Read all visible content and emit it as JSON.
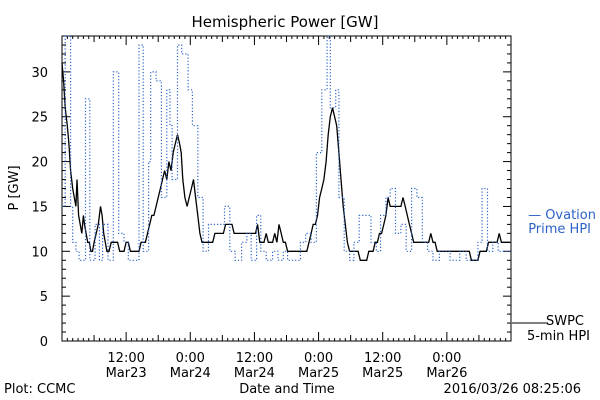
{
  "chart_data": {
    "type": "line",
    "title": "Hemispheric Power [GW]",
    "ylabel": "P [GW]",
    "xlabel": "Date and Time",
    "ylim": [
      0,
      34
    ],
    "y_ticks": [
      0,
      5,
      10,
      15,
      20,
      25,
      30
    ],
    "x_range_hours": [
      0,
      84
    ],
    "x_ticks": [
      {
        "hour": 12,
        "line1": "12:00",
        "line2": "Mar23"
      },
      {
        "hour": 24,
        "line1": "0:00",
        "line2": "Mar24"
      },
      {
        "hour": 36,
        "line1": "12:00",
        "line2": "Mar24"
      },
      {
        "hour": 48,
        "line1": "0:00",
        "line2": "Mar25"
      },
      {
        "hour": 60,
        "line1": "12:00",
        "line2": "Mar25"
      },
      {
        "hour": 72,
        "line1": "0:00",
        "line2": "Mar26"
      }
    ],
    "footer": {
      "left": "Plot: CCMC",
      "right": "2016/03/26 08:25:06"
    },
    "legend": [
      {
        "key": "ovation",
        "line1": "— Ovation",
        "line2": "Prime HPI",
        "color": "#2d63c8",
        "position": "right-middle"
      },
      {
        "key": "swpc",
        "line1": "SWPC",
        "line2": "5-min HPI",
        "color": "#000000",
        "position": "right-bottom"
      }
    ],
    "series": [
      {
        "key": "swpc",
        "color": "#000000",
        "style": "solid",
        "step": false,
        "points": [
          [
            0,
            31
          ],
          [
            0.3,
            29
          ],
          [
            0.6,
            26
          ],
          [
            1,
            24
          ],
          [
            1.3,
            22
          ],
          [
            1.6,
            19
          ],
          [
            2,
            17
          ],
          [
            2.3,
            16
          ],
          [
            2.6,
            15
          ],
          [
            2.8,
            18
          ],
          [
            3.1,
            14
          ],
          [
            3.4,
            13
          ],
          [
            3.7,
            12
          ],
          [
            4,
            14
          ],
          [
            4.2,
            13
          ],
          [
            4.5,
            12
          ],
          [
            4.8,
            11
          ],
          [
            5.1,
            11
          ],
          [
            5.4,
            10
          ],
          [
            5.7,
            10
          ],
          [
            6,
            11
          ],
          [
            6.4,
            12
          ],
          [
            6.8,
            13
          ],
          [
            7.2,
            15
          ],
          [
            7.5,
            14
          ],
          [
            7.8,
            12
          ],
          [
            8.1,
            11
          ],
          [
            8.4,
            10
          ],
          [
            8.8,
            10
          ],
          [
            9.2,
            11
          ],
          [
            9.6,
            11
          ],
          [
            10,
            11
          ],
          [
            10.4,
            11
          ],
          [
            10.8,
            10
          ],
          [
            11.2,
            10
          ],
          [
            11.6,
            10
          ],
          [
            12,
            11
          ],
          [
            12.4,
            11
          ],
          [
            12.8,
            10
          ],
          [
            13.2,
            10
          ],
          [
            13.6,
            10
          ],
          [
            14,
            10
          ],
          [
            14.4,
            10
          ],
          [
            14.8,
            11
          ],
          [
            15.2,
            11
          ],
          [
            15.6,
            11
          ],
          [
            16,
            12
          ],
          [
            16.4,
            13
          ],
          [
            16.8,
            14
          ],
          [
            17.2,
            14
          ],
          [
            17.6,
            15
          ],
          [
            18,
            16
          ],
          [
            18.4,
            17
          ],
          [
            18.8,
            18
          ],
          [
            19.2,
            19
          ],
          [
            19.6,
            18
          ],
          [
            20,
            20
          ],
          [
            20.4,
            19
          ],
          [
            20.8,
            21
          ],
          [
            21.2,
            22
          ],
          [
            21.6,
            23
          ],
          [
            22,
            22
          ],
          [
            22.3,
            21
          ],
          [
            22.6,
            18
          ],
          [
            23,
            16
          ],
          [
            23.4,
            15
          ],
          [
            23.8,
            16
          ],
          [
            24.2,
            17
          ],
          [
            24.6,
            18
          ],
          [
            25,
            16
          ],
          [
            25.4,
            14
          ],
          [
            25.8,
            12
          ],
          [
            26.2,
            11
          ],
          [
            26.6,
            11
          ],
          [
            27,
            11
          ],
          [
            27.4,
            11
          ],
          [
            27.8,
            11
          ],
          [
            28.2,
            11
          ],
          [
            28.6,
            12
          ],
          [
            29,
            12
          ],
          [
            29.4,
            12
          ],
          [
            29.8,
            12
          ],
          [
            30.2,
            12
          ],
          [
            30.6,
            13
          ],
          [
            31,
            13
          ],
          [
            31.4,
            13
          ],
          [
            31.8,
            13
          ],
          [
            32.2,
            12
          ],
          [
            32.6,
            12
          ],
          [
            33,
            12
          ],
          [
            33.4,
            12
          ],
          [
            33.8,
            12
          ],
          [
            34.2,
            12
          ],
          [
            34.6,
            12
          ],
          [
            35,
            12
          ],
          [
            35.4,
            12
          ],
          [
            35.8,
            12
          ],
          [
            36.2,
            12
          ],
          [
            36.6,
            13
          ],
          [
            37,
            11
          ],
          [
            37.4,
            11
          ],
          [
            37.8,
            11
          ],
          [
            38.2,
            12
          ],
          [
            38.6,
            11
          ],
          [
            39,
            11
          ],
          [
            39.4,
            11
          ],
          [
            39.8,
            12
          ],
          [
            40.2,
            11
          ],
          [
            40.6,
            13
          ],
          [
            41,
            12
          ],
          [
            41.4,
            11
          ],
          [
            41.8,
            11
          ],
          [
            42.2,
            10
          ],
          [
            42.6,
            10
          ],
          [
            43,
            10
          ],
          [
            43.4,
            10
          ],
          [
            43.8,
            10
          ],
          [
            44.2,
            10
          ],
          [
            44.6,
            10
          ],
          [
            45,
            10
          ],
          [
            45.4,
            10
          ],
          [
            45.8,
            10
          ],
          [
            46.2,
            11
          ],
          [
            46.6,
            12
          ],
          [
            47,
            13
          ],
          [
            47.4,
            13
          ],
          [
            47.8,
            14
          ],
          [
            48.2,
            16
          ],
          [
            48.6,
            17
          ],
          [
            49,
            18
          ],
          [
            49.4,
            20
          ],
          [
            49.8,
            23
          ],
          [
            50.2,
            25
          ],
          [
            50.6,
            26
          ],
          [
            51,
            25
          ],
          [
            51.4,
            24
          ],
          [
            51.8,
            21
          ],
          [
            52.2,
            18
          ],
          [
            52.6,
            15
          ],
          [
            53,
            13
          ],
          [
            53.4,
            11
          ],
          [
            53.8,
            10
          ],
          [
            54.2,
            10
          ],
          [
            54.6,
            10
          ],
          [
            55,
            10
          ],
          [
            55.4,
            10
          ],
          [
            55.8,
            9
          ],
          [
            56.2,
            9
          ],
          [
            56.6,
            9
          ],
          [
            57,
            9
          ],
          [
            57.4,
            10
          ],
          [
            57.8,
            10
          ],
          [
            58.2,
            10
          ],
          [
            58.6,
            11
          ],
          [
            59,
            11
          ],
          [
            59.4,
            12
          ],
          [
            59.8,
            12
          ],
          [
            60.2,
            13
          ],
          [
            60.6,
            14
          ],
          [
            61,
            16
          ],
          [
            61.4,
            15
          ],
          [
            61.8,
            15
          ],
          [
            62.2,
            15
          ],
          [
            62.6,
            15
          ],
          [
            63,
            15
          ],
          [
            63.4,
            15
          ],
          [
            63.8,
            16
          ],
          [
            64.2,
            15
          ],
          [
            64.6,
            14
          ],
          [
            65,
            13
          ],
          [
            65.4,
            12
          ],
          [
            65.8,
            11
          ],
          [
            66.2,
            11
          ],
          [
            66.6,
            11
          ],
          [
            67,
            11
          ],
          [
            67.4,
            11
          ],
          [
            67.8,
            11
          ],
          [
            68.2,
            11
          ],
          [
            68.6,
            11
          ],
          [
            69,
            12
          ],
          [
            69.4,
            11
          ],
          [
            69.8,
            11
          ],
          [
            70.2,
            10
          ],
          [
            70.6,
            10
          ],
          [
            71,
            10
          ],
          [
            71.4,
            10
          ],
          [
            71.8,
            10
          ],
          [
            72.2,
            10
          ],
          [
            72.6,
            10
          ],
          [
            73,
            10
          ],
          [
            73.4,
            10
          ],
          [
            73.8,
            10
          ],
          [
            74.2,
            10
          ],
          [
            74.6,
            10
          ],
          [
            75,
            10
          ],
          [
            75.4,
            10
          ],
          [
            75.8,
            10
          ],
          [
            76.2,
            10
          ],
          [
            76.6,
            9
          ],
          [
            77,
            9
          ],
          [
            77.4,
            9
          ],
          [
            77.8,
            9
          ],
          [
            78.2,
            10
          ],
          [
            78.6,
            10
          ],
          [
            79,
            10
          ],
          [
            79.4,
            10
          ],
          [
            79.8,
            11
          ],
          [
            80.2,
            11
          ],
          [
            80.6,
            11
          ],
          [
            81,
            11
          ],
          [
            81.4,
            11
          ],
          [
            81.8,
            12
          ],
          [
            82.2,
            11
          ],
          [
            82.6,
            11
          ],
          [
            83,
            11
          ],
          [
            83.4,
            11
          ],
          [
            83.8,
            11
          ]
        ]
      },
      {
        "key": "ovation",
        "color": "#2d63c8",
        "style": "dotted",
        "step": true,
        "points": [
          [
            0,
            15
          ],
          [
            0.6,
            34
          ],
          [
            1.6,
            15
          ],
          [
            2,
            11
          ],
          [
            2.6,
            10
          ],
          [
            3.2,
            9
          ],
          [
            4.4,
            27
          ],
          [
            5.2,
            9
          ],
          [
            6.2,
            13
          ],
          [
            7,
            9
          ],
          [
            7.6,
            13
          ],
          [
            8.6,
            9
          ],
          [
            9.6,
            30
          ],
          [
            10.6,
            12
          ],
          [
            11.6,
            11
          ],
          [
            12.4,
            9
          ],
          [
            13.4,
            9
          ],
          [
            14.4,
            33
          ],
          [
            15.2,
            10
          ],
          [
            16.2,
            20
          ],
          [
            16.6,
            30
          ],
          [
            17.6,
            29
          ],
          [
            18.6,
            16
          ],
          [
            19.6,
            28
          ],
          [
            20.2,
            24
          ],
          [
            20.6,
            18
          ],
          [
            21.6,
            33
          ],
          [
            22.4,
            32
          ],
          [
            23.6,
            28
          ],
          [
            24.4,
            24
          ],
          [
            25.4,
            16
          ],
          [
            26.4,
            10
          ],
          [
            27.4,
            13
          ],
          [
            28.6,
            13
          ],
          [
            29.6,
            13
          ],
          [
            30.4,
            15
          ],
          [
            31.4,
            10
          ],
          [
            32.4,
            9
          ],
          [
            33.6,
            11
          ],
          [
            34.6,
            12
          ],
          [
            35.4,
            9
          ],
          [
            36.4,
            14
          ],
          [
            37.2,
            10
          ],
          [
            38.2,
            9
          ],
          [
            39.4,
            10
          ],
          [
            40.4,
            9
          ],
          [
            41.4,
            10
          ],
          [
            42.2,
            9
          ],
          [
            43.6,
            9
          ],
          [
            44.6,
            11
          ],
          [
            45.6,
            12
          ],
          [
            46.6,
            11
          ],
          [
            47.6,
            21
          ],
          [
            48.6,
            28
          ],
          [
            49.6,
            34
          ],
          [
            50.2,
            26
          ],
          [
            51.2,
            28
          ],
          [
            51.8,
            16
          ],
          [
            52.8,
            10
          ],
          [
            53.8,
            9
          ],
          [
            54.6,
            11
          ],
          [
            55.6,
            14
          ],
          [
            56.6,
            14
          ],
          [
            57.8,
            11
          ],
          [
            58.8,
            10
          ],
          [
            59.6,
            14
          ],
          [
            60.6,
            16
          ],
          [
            61.4,
            17
          ],
          [
            62.4,
            12
          ],
          [
            63.4,
            13
          ],
          [
            64.4,
            10
          ],
          [
            65.4,
            17
          ],
          [
            66.4,
            16
          ],
          [
            67.4,
            11
          ],
          [
            68.4,
            10
          ],
          [
            69.4,
            9
          ],
          [
            70.6,
            10
          ],
          [
            71.6,
            10
          ],
          [
            72.6,
            9
          ],
          [
            73.6,
            9
          ],
          [
            74.4,
            10
          ],
          [
            75.6,
            9
          ],
          [
            76.8,
            9
          ],
          [
            77.8,
            11
          ],
          [
            78.6,
            17
          ],
          [
            79.6,
            10
          ],
          [
            80.6,
            11
          ],
          [
            81.6,
            10
          ],
          [
            82.6,
            10
          ],
          [
            83.4,
            10
          ]
        ]
      }
    ]
  }
}
